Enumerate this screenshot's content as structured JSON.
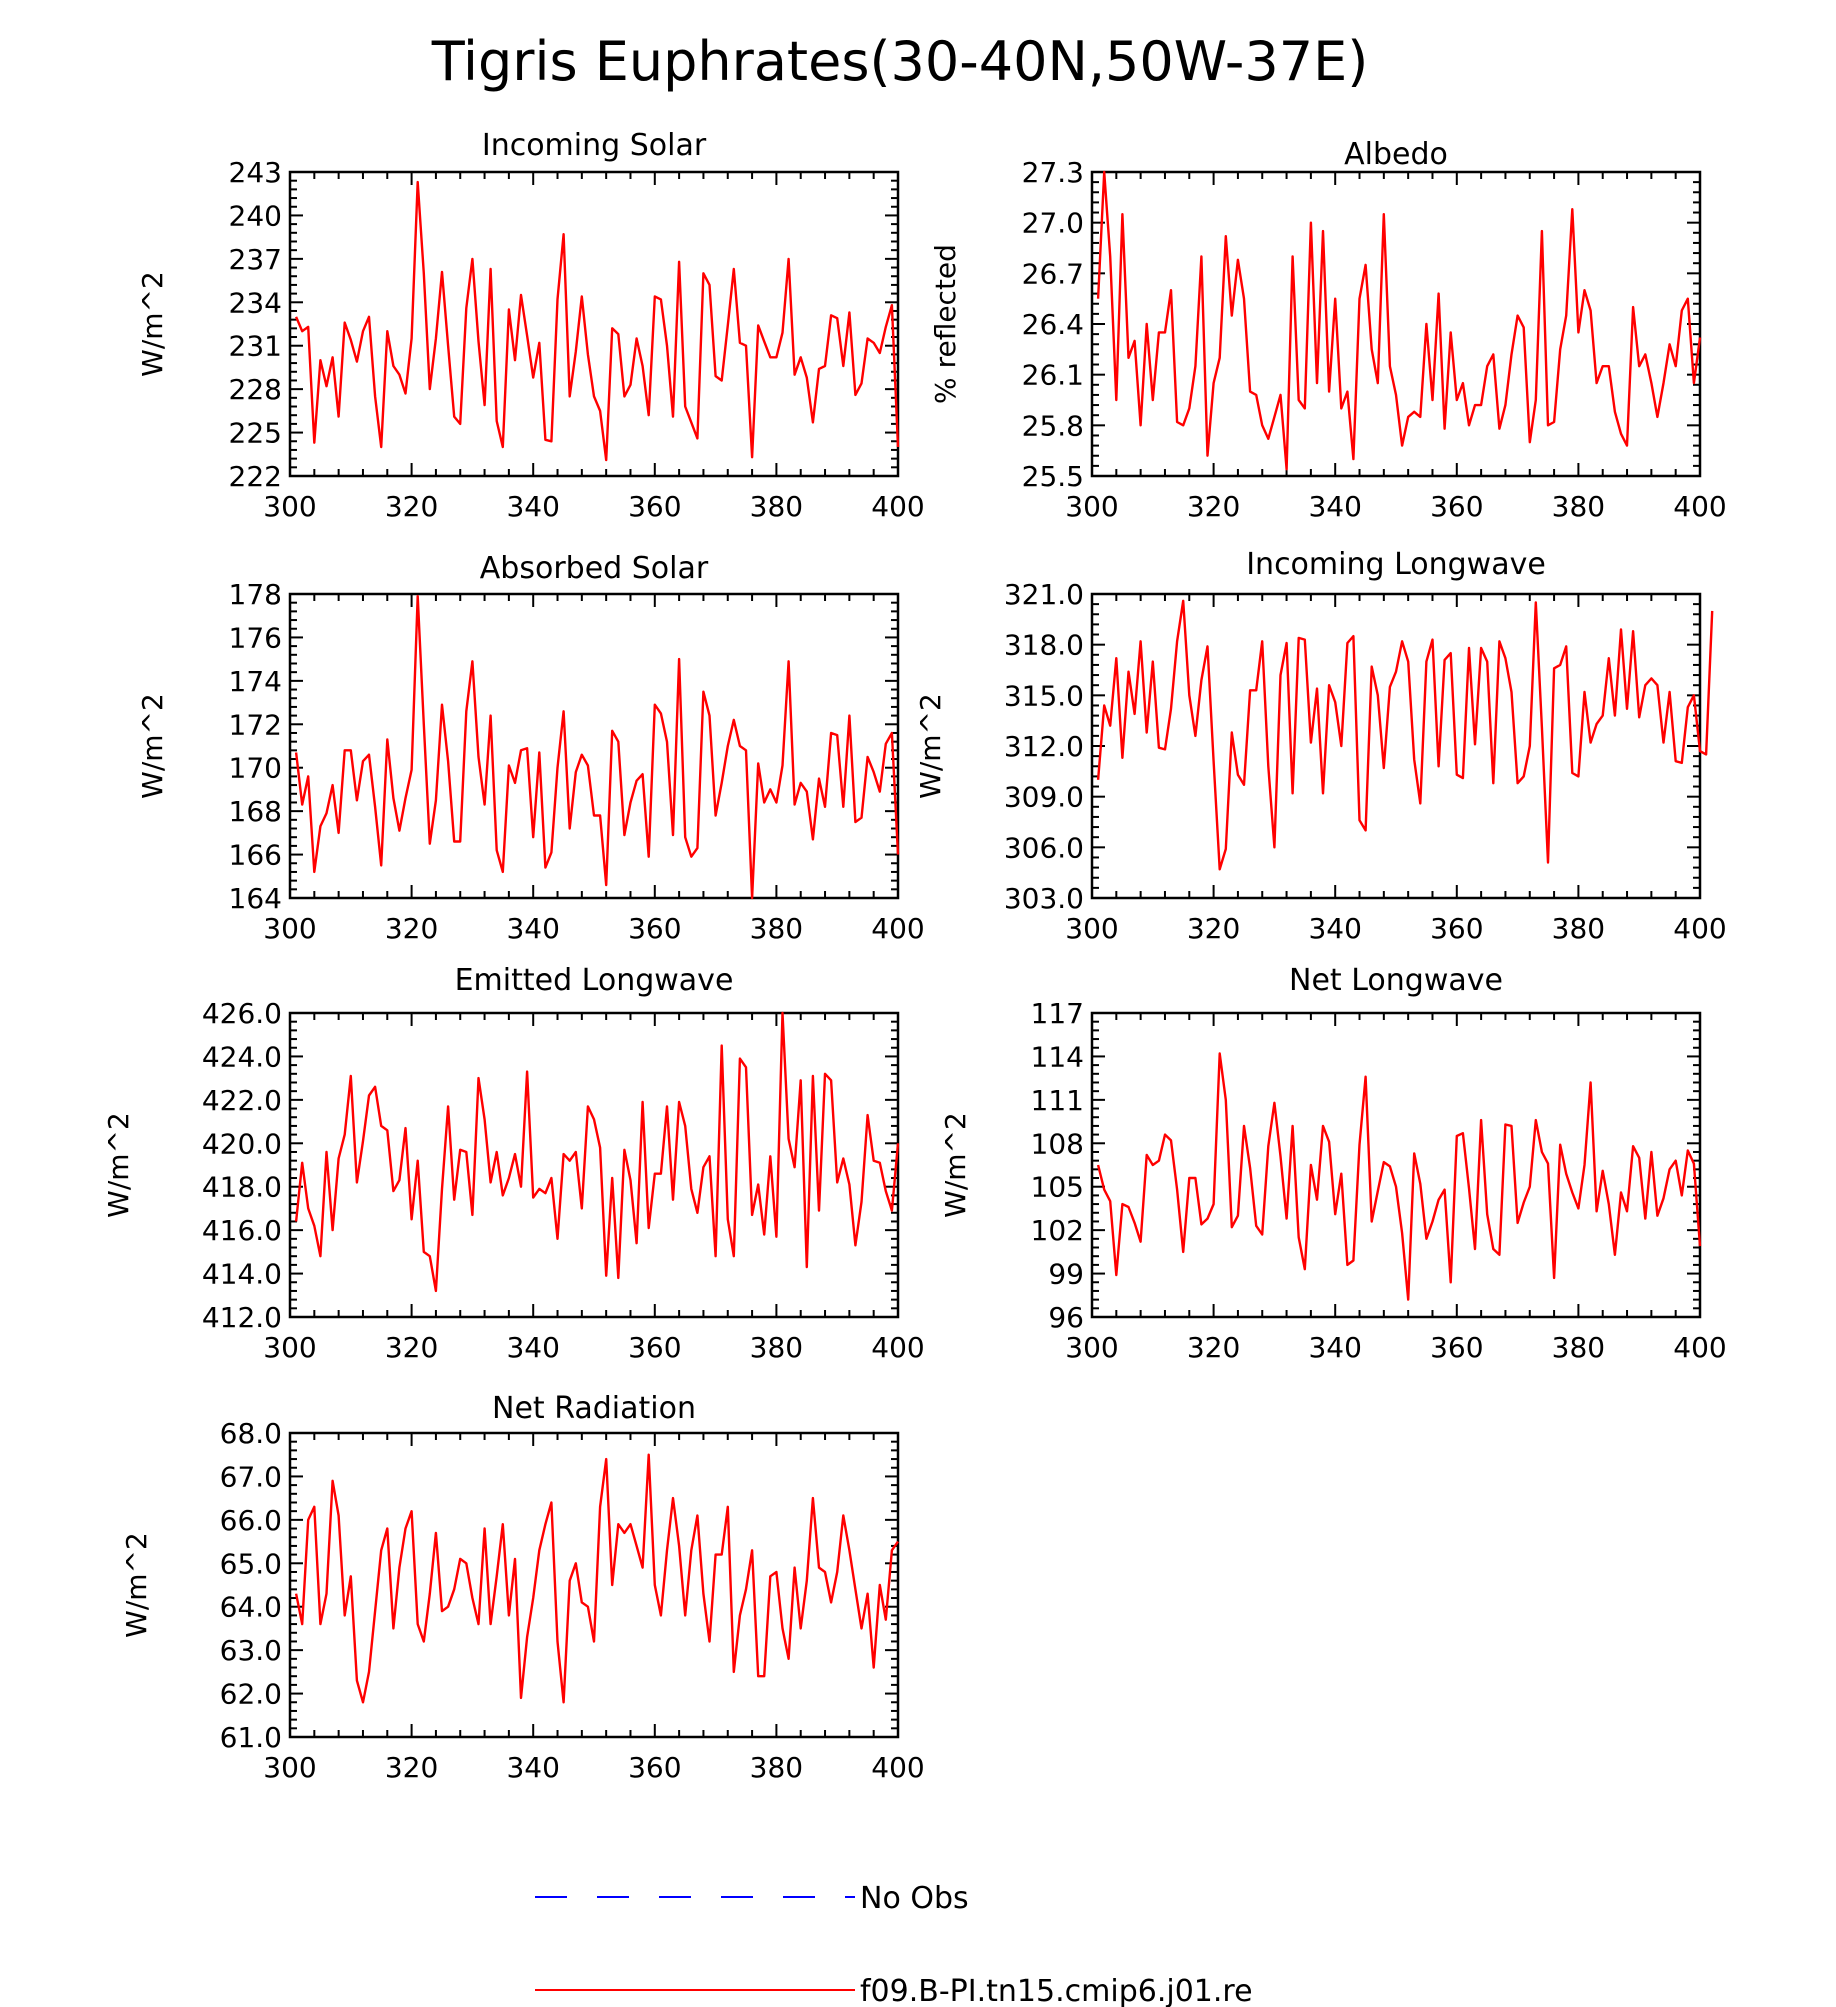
{
  "figure_title": "Tigris Euphrates(30-40N,50W-37E)",
  "colors": {
    "model": "#ff0000",
    "obs": "#0000ff",
    "axes": "#000000"
  },
  "legend": {
    "obs_label": "No Obs",
    "model_label": "f09.B-PI.tn15.cmip6.j01.re"
  },
  "chart_data": [
    {
      "type": "line",
      "title": "Incoming Solar",
      "xlabel": "",
      "ylabel": "W/m^2",
      "xlim": [
        300,
        400
      ],
      "ylim": [
        222,
        243
      ],
      "xticks": [
        "300",
        "320",
        "340",
        "360",
        "380",
        "400"
      ],
      "yticks": [
        "222",
        "225",
        "228",
        "231",
        "234",
        "237",
        "240",
        "243"
      ],
      "series": [
        {
          "name": "f09.B-PI.tn15.cmip6.j01.re",
          "x_start": 301,
          "values": [
            233.0,
            232.0,
            232.3,
            224.3,
            230.0,
            228.2,
            230.2,
            226.1,
            232.6,
            231.4,
            229.9,
            232.0,
            233.0,
            227.5,
            224.0,
            232.0,
            229.6,
            229.0,
            227.7,
            231.5,
            242.3,
            236.0,
            228.0,
            231.5,
            236.1,
            231.0,
            226.1,
            225.6,
            233.6,
            237.0,
            231.3,
            226.9,
            236.3,
            225.8,
            224.0,
            233.5,
            230.0,
            234.5,
            231.7,
            228.8,
            231.2,
            224.5,
            224.4,
            234.2,
            238.7,
            227.5,
            230.6,
            234.4,
            230.4,
            227.5,
            226.5,
            223.1,
            232.2,
            231.8,
            227.5,
            228.3,
            231.5,
            229.6,
            226.2,
            234.4,
            234.2,
            231.0,
            226.1,
            236.8,
            226.8,
            225.7,
            224.6,
            236.0,
            235.2,
            228.9,
            228.6,
            232.4,
            236.3,
            231.2,
            231.0,
            223.3,
            232.4,
            231.3,
            230.2,
            230.2,
            231.9,
            237.0,
            229.0,
            230.2,
            228.8,
            225.7,
            229.4,
            229.6,
            233.1,
            232.9,
            229.6,
            233.3,
            227.6,
            228.4,
            231.5,
            231.2,
            230.5,
            232.3,
            233.8,
            224.0
          ]
        }
      ]
    },
    {
      "type": "line",
      "title": "Albedo",
      "xlabel": "",
      "ylabel": "% reflected",
      "xlim": [
        300,
        400
      ],
      "ylim": [
        25.5,
        27.3
      ],
      "xticks": [
        "300",
        "320",
        "340",
        "360",
        "380",
        "400"
      ],
      "yticks": [
        "25.5",
        "25.8",
        "26.1",
        "26.4",
        "26.7",
        "27.0",
        "27.3"
      ],
      "series": [
        {
          "name": "f09.B-PI.tn15.cmip6.j01.re",
          "x_start": 301,
          "values": [
            26.55,
            27.3,
            26.8,
            25.95,
            27.05,
            26.2,
            26.3,
            25.8,
            26.4,
            25.95,
            26.35,
            26.35,
            26.6,
            25.82,
            25.8,
            25.9,
            26.15,
            26.8,
            25.62,
            26.05,
            26.2,
            26.92,
            26.45,
            26.78,
            26.55,
            26.0,
            25.98,
            25.8,
            25.72,
            25.85,
            25.98,
            25.54,
            26.8,
            25.95,
            25.9,
            27.0,
            26.05,
            26.95,
            26.0,
            26.55,
            25.9,
            26.0,
            25.6,
            26.55,
            26.75,
            26.25,
            26.05,
            27.05,
            26.15,
            25.98,
            25.68,
            25.85,
            25.88,
            25.85,
            26.4,
            25.95,
            26.58,
            25.78,
            26.35,
            25.95,
            26.05,
            25.8,
            25.92,
            25.92,
            26.15,
            26.22,
            25.78,
            25.92,
            26.22,
            26.45,
            26.38,
            25.7,
            25.95,
            26.95,
            25.8,
            25.82,
            26.25,
            26.45,
            27.08,
            26.35,
            26.6,
            26.48,
            26.05,
            26.15,
            26.15,
            25.88,
            25.75,
            25.68,
            26.5,
            26.15,
            26.22,
            26.05,
            25.85,
            26.05,
            26.28,
            26.15,
            26.48,
            26.55,
            26.05,
            26.32
          ]
        }
      ]
    },
    {
      "type": "line",
      "title": "Absorbed Solar",
      "xlabel": "",
      "ylabel": "W/m^2",
      "xlim": [
        300,
        400
      ],
      "ylim": [
        164,
        178
      ],
      "xticks": [
        "300",
        "320",
        "340",
        "360",
        "380",
        "400"
      ],
      "yticks": [
        "164",
        "166",
        "168",
        "170",
        "172",
        "174",
        "176",
        "178"
      ],
      "series": [
        {
          "name": "f09.B-PI.tn15.cmip6.j01.re",
          "x_start": 301,
          "values": [
            170.7,
            168.3,
            169.6,
            165.2,
            167.3,
            167.9,
            169.2,
            167.0,
            170.8,
            170.8,
            168.5,
            170.3,
            170.6,
            168.2,
            165.5,
            171.3,
            168.6,
            167.1,
            168.6,
            169.9,
            177.9,
            172.0,
            166.5,
            168.5,
            172.9,
            170.3,
            166.6,
            166.6,
            172.6,
            174.9,
            170.5,
            168.3,
            172.4,
            166.2,
            165.2,
            170.1,
            169.3,
            170.8,
            170.9,
            166.8,
            170.7,
            165.4,
            166.1,
            170.0,
            172.6,
            167.2,
            169.8,
            170.6,
            170.1,
            167.8,
            167.8,
            164.6,
            171.7,
            171.2,
            166.9,
            168.4,
            169.4,
            169.7,
            165.9,
            172.9,
            172.5,
            171.2,
            166.9,
            175.0,
            166.8,
            165.9,
            166.3,
            173.5,
            172.4,
            167.8,
            169.3,
            171.0,
            172.2,
            171.0,
            170.8,
            164.0,
            170.2,
            168.4,
            169.0,
            168.4,
            170.1,
            174.9,
            168.3,
            169.3,
            168.9,
            166.7,
            169.5,
            168.2,
            171.6,
            171.5,
            168.2,
            172.4,
            167.5,
            167.7,
            170.5,
            169.8,
            168.9,
            171.1,
            171.6,
            166.0
          ]
        }
      ]
    },
    {
      "type": "line",
      "title": "Incoming Longwave",
      "xlabel": "",
      "ylabel": "W/m^2",
      "xlim": [
        300,
        400
      ],
      "ylim": [
        303.0,
        321.0
      ],
      "xticks": [
        "300",
        "320",
        "340",
        "360",
        "380",
        "400"
      ],
      "yticks": [
        "303.0",
        "306.0",
        "309.0",
        "312.0",
        "315.0",
        "318.0",
        "321.0"
      ],
      "series": [
        {
          "name": "f09.B-PI.tn15.cmip6.j01.re",
          "x_start": 301,
          "values": [
            310.0,
            314.4,
            313.2,
            317.2,
            311.3,
            316.4,
            313.9,
            318.2,
            312.8,
            317.0,
            311.9,
            311.8,
            314.2,
            318.2,
            320.6,
            315.0,
            312.6,
            315.9,
            317.9,
            311.1,
            304.7,
            305.9,
            312.8,
            310.3,
            309.7,
            315.3,
            315.3,
            318.2,
            310.8,
            306.0,
            316.2,
            318.1,
            309.2,
            318.4,
            318.3,
            312.2,
            315.4,
            309.2,
            315.6,
            314.6,
            312.0,
            318.1,
            318.5,
            307.6,
            307.0,
            316.7,
            315.0,
            310.7,
            315.5,
            316.4,
            318.2,
            317.0,
            311.2,
            308.6,
            317.0,
            318.3,
            310.8,
            317.1,
            317.5,
            310.3,
            310.1,
            317.8,
            312.1,
            317.8,
            317.0,
            309.8,
            318.2,
            317.2,
            315.2,
            309.8,
            310.2,
            312.0,
            320.5,
            313.1,
            305.1,
            316.6,
            316.8,
            317.9,
            310.4,
            310.2,
            315.2,
            312.2,
            313.3,
            313.8,
            317.2,
            313.8,
            318.9,
            314.2,
            318.8,
            313.7,
            315.6,
            316.0,
            315.6,
            312.2,
            315.2,
            311.1,
            311.0,
            314.3,
            315.0,
            311.7,
            311.5,
            320.0
          ]
        }
      ]
    },
    {
      "type": "line",
      "title": "Emitted Longwave",
      "xlabel": "",
      "ylabel": "W/m^2",
      "xlim": [
        300,
        400
      ],
      "ylim": [
        412.0,
        426.0
      ],
      "xticks": [
        "300",
        "320",
        "340",
        "360",
        "380",
        "400"
      ],
      "yticks": [
        "412.0",
        "414.0",
        "416.0",
        "418.0",
        "420.0",
        "422.0",
        "424.0",
        "426.0"
      ],
      "series": [
        {
          "name": "f09.B-PI.tn15.cmip6.j01.re",
          "x_start": 301,
          "values": [
            416.4,
            419.1,
            417.0,
            416.2,
            414.8,
            419.6,
            416.0,
            419.3,
            420.4,
            423.1,
            418.2,
            420.1,
            422.2,
            422.6,
            420.8,
            420.6,
            417.8,
            418.3,
            420.7,
            416.5,
            419.2,
            415.0,
            414.8,
            413.2,
            417.9,
            421.7,
            417.4,
            419.7,
            419.6,
            416.7,
            423.0,
            421.1,
            418.2,
            419.6,
            417.6,
            418.4,
            419.5,
            418.0,
            423.3,
            417.5,
            417.9,
            417.7,
            418.4,
            415.6,
            419.5,
            419.2,
            419.6,
            417.0,
            421.7,
            421.1,
            419.8,
            413.9,
            418.4,
            413.8,
            419.7,
            418.3,
            415.4,
            421.9,
            416.1,
            418.6,
            418.6,
            421.7,
            417.4,
            421.9,
            420.8,
            417.9,
            416.8,
            418.9,
            419.4,
            414.8,
            424.5,
            416.5,
            414.8,
            423.9,
            423.5,
            416.7,
            418.1,
            415.8,
            419.4,
            415.7,
            426.0,
            420.2,
            418.9,
            422.9,
            414.3,
            423.1,
            416.9,
            423.2,
            422.9,
            418.2,
            419.3,
            418.1,
            415.3,
            417.3,
            421.3,
            419.2,
            419.1,
            417.8,
            416.9,
            420.0
          ]
        }
      ]
    },
    {
      "type": "line",
      "title": "Net Longwave",
      "xlabel": "",
      "ylabel": "W/m^2",
      "xlim": [
        300,
        400
      ],
      "ylim": [
        96,
        117
      ],
      "xticks": [
        "300",
        "320",
        "340",
        "360",
        "380",
        "400"
      ],
      "yticks": [
        "96",
        "99",
        "102",
        "105",
        "108",
        "111",
        "114",
        "117"
      ],
      "series": [
        {
          "name": "f09.B-PI.tn15.cmip6.j01.re",
          "x_start": 301,
          "values": [
            106.5,
            104.8,
            104.0,
            98.9,
            103.8,
            103.6,
            102.5,
            101.2,
            107.2,
            106.5,
            106.8,
            108.6,
            108.2,
            104.8,
            100.5,
            105.6,
            105.6,
            102.4,
            102.8,
            103.8,
            114.2,
            111.0,
            102.2,
            103.0,
            109.2,
            106.3,
            102.3,
            101.7,
            107.8,
            110.8,
            107.1,
            102.8,
            109.2,
            101.5,
            99.3,
            106.5,
            104.1,
            109.2,
            108.1,
            103.1,
            105.9,
            99.6,
            99.9,
            107.9,
            112.6,
            102.6,
            104.7,
            106.7,
            106.4,
            105.0,
            101.8,
            97.2,
            107.3,
            105.2,
            101.4,
            102.6,
            104.1,
            104.8,
            98.4,
            108.5,
            108.7,
            104.9,
            100.7,
            109.6,
            103.1,
            100.7,
            100.3,
            109.3,
            109.2,
            102.5,
            103.9,
            105.0,
            109.6,
            107.4,
            106.6,
            98.7,
            107.9,
            105.9,
            104.6,
            103.5,
            106.5,
            112.2,
            103.3,
            106.1,
            103.8,
            100.3,
            104.6,
            103.3,
            107.8,
            107.0,
            102.8,
            107.4,
            103.0,
            104.2,
            106.2,
            106.8,
            104.4,
            107.5,
            106.6,
            100.9
          ]
        }
      ]
    },
    {
      "type": "line",
      "title": "Net Radiation",
      "xlabel": "",
      "ylabel": "W/m^2",
      "xlim": [
        300,
        400
      ],
      "ylim": [
        61.0,
        68.0
      ],
      "xticks": [
        "300",
        "320",
        "340",
        "360",
        "380",
        "400"
      ],
      "yticks": [
        "61.0",
        "62.0",
        "63.0",
        "64.0",
        "65.0",
        "66.0",
        "67.0",
        "68.0"
      ],
      "series": [
        {
          "name": "f09.B-PI.tn15.cmip6.j01.re",
          "x_start": 301,
          "values": [
            64.3,
            63.6,
            66.0,
            66.3,
            63.6,
            64.3,
            66.9,
            66.1,
            63.8,
            64.7,
            62.3,
            61.8,
            62.5,
            63.9,
            65.3,
            65.8,
            63.5,
            64.9,
            65.8,
            66.2,
            63.6,
            63.2,
            64.3,
            65.7,
            63.9,
            64.0,
            64.4,
            65.1,
            65.0,
            64.2,
            63.6,
            65.8,
            63.6,
            64.7,
            65.9,
            63.8,
            65.1,
            61.9,
            63.3,
            64.2,
            65.3,
            65.9,
            66.4,
            63.2,
            61.8,
            64.6,
            65.0,
            64.1,
            64.0,
            63.2,
            66.3,
            67.4,
            64.5,
            65.9,
            65.7,
            65.9,
            65.4,
            64.9,
            67.5,
            64.5,
            63.8,
            65.3,
            66.5,
            65.4,
            63.8,
            65.3,
            66.1,
            64.3,
            63.2,
            65.2,
            65.2,
            66.3,
            62.5,
            63.8,
            64.4,
            65.3,
            62.4,
            62.4,
            64.7,
            64.8,
            63.5,
            62.8,
            64.9,
            63.5,
            64.6,
            66.5,
            64.9,
            64.8,
            64.1,
            64.8,
            66.1,
            65.3,
            64.4,
            63.5,
            64.3,
            62.6,
            64.5,
            63.7,
            65.3,
            65.5
          ]
        }
      ]
    }
  ]
}
